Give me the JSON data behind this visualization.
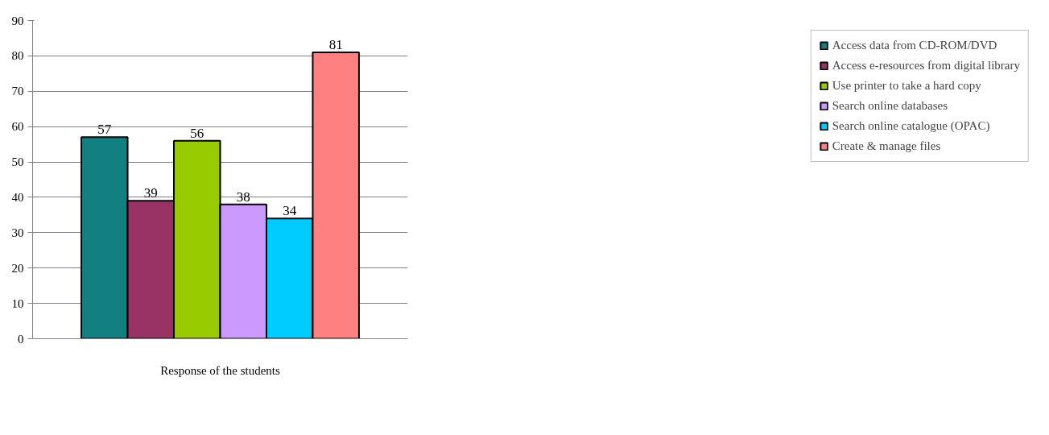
{
  "chart_data": {
    "type": "bar",
    "categories": [
      "Response of the students"
    ],
    "series": [
      {
        "name": "Access data from CD-ROM/DVD",
        "color": "#128080",
        "values": [
          57
        ]
      },
      {
        "name": "Access e-resources from digital library",
        "color": "#993366",
        "values": [
          39
        ]
      },
      {
        "name": "Use printer to take a hard copy",
        "color": "#99cc00",
        "values": [
          56
        ]
      },
      {
        "name": "Search online databases",
        "color": "#cc99ff",
        "values": [
          38
        ]
      },
      {
        "name": "Search online catalogue (OPAC)",
        "color": "#00ccff",
        "values": [
          34
        ]
      },
      {
        "name": "Create & manage files",
        "color": "#ff8080",
        "values": [
          81
        ]
      }
    ],
    "ylim": [
      0,
      90
    ],
    "yticks": [
      0,
      10,
      20,
      30,
      40,
      50,
      60,
      70,
      80,
      90
    ],
    "grid": "y",
    "legend": "right",
    "data_labels": true
  }
}
